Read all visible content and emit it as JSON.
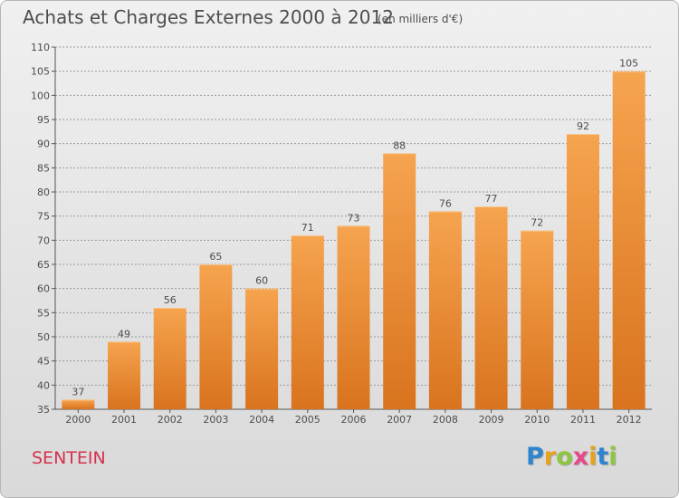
{
  "header": {
    "title": "Achats et Charges Externes 2000 à 2012",
    "subtitle": "(en milliers d'€)"
  },
  "footer": {
    "commune": "SENTEIN",
    "logo_letters": [
      "P",
      "r",
      "o",
      "x",
      "i",
      "t",
      "i"
    ],
    "logo_colors": [
      "#2f84d0",
      "#e8a21d",
      "#8dc63f",
      "#e64a8a",
      "#e8a21d",
      "#2f84d0",
      "#8dc63f"
    ]
  },
  "colors": {
    "bar_top": "#f6a44f",
    "bar_bottom": "#d9731e",
    "text": "#4d4d4d",
    "grid": "#9a9a9a"
  },
  "chart_data": {
    "type": "bar",
    "categories": [
      "2000",
      "2001",
      "2002",
      "2003",
      "2004",
      "2005",
      "2006",
      "2007",
      "2008",
      "2009",
      "2010",
      "2011",
      "2012"
    ],
    "values": [
      37,
      49,
      56,
      65,
      60,
      71,
      73,
      88,
      76,
      77,
      72,
      92,
      105
    ],
    "ylim": [
      35,
      110
    ],
    "yticks": [
      35,
      40,
      45,
      50,
      55,
      60,
      65,
      70,
      75,
      80,
      85,
      90,
      95,
      100,
      105,
      110
    ],
    "grid": true,
    "title": "Achats et Charges Externes 2000 à 2012",
    "xlabel": "",
    "ylabel": ""
  }
}
